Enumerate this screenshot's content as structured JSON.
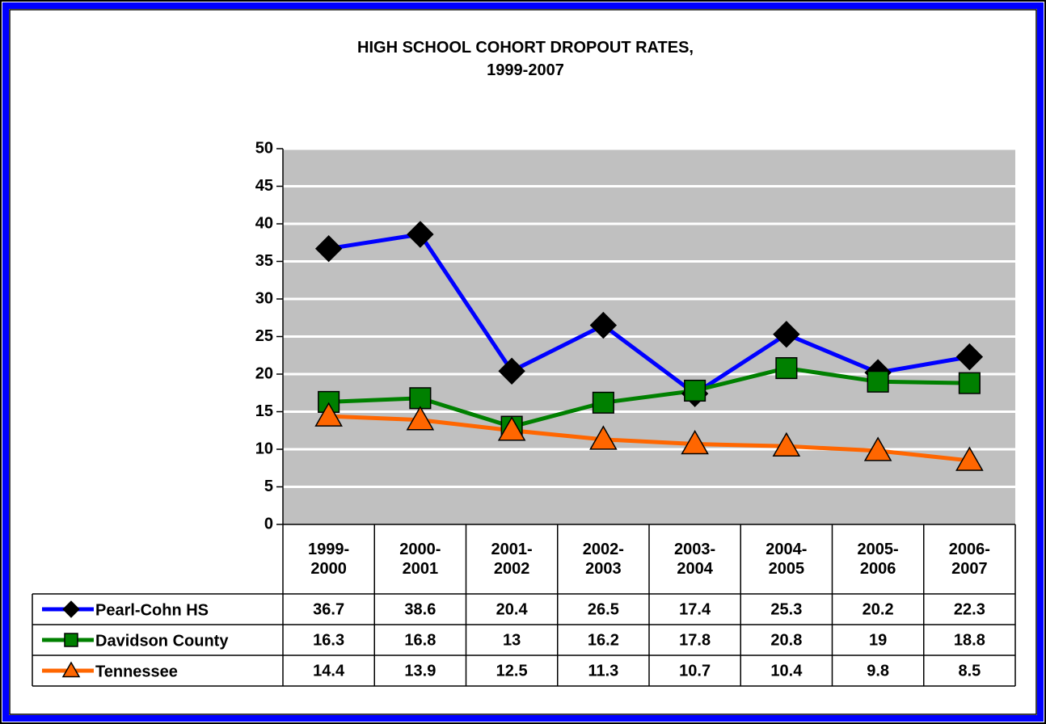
{
  "chart_data": {
    "type": "line",
    "title": "HIGH SCHOOL COHORT DROPOUT RATES,\n1999-2007",
    "categories": [
      "1999-2000",
      "2000-2001",
      "2001-2002",
      "2002-2003",
      "2003-2004",
      "2004-2005",
      "2005-2006",
      "2006-2007"
    ],
    "series": [
      {
        "name": "Pearl-Cohn HS",
        "color": "#0000ff",
        "marker": "diamond",
        "marker_color": "#000000",
        "values": [
          36.7,
          38.6,
          20.4,
          26.5,
          17.4,
          25.3,
          20.2,
          22.3
        ]
      },
      {
        "name": "Davidson County",
        "color": "#008000",
        "marker": "square",
        "marker_color": "#008000",
        "values": [
          16.3,
          16.8,
          13,
          16.2,
          17.8,
          20.8,
          19,
          18.8
        ]
      },
      {
        "name": "Tennessee",
        "color": "#ff6600",
        "marker": "triangle",
        "marker_color": "#ff6600",
        "values": [
          14.4,
          13.9,
          12.5,
          11.3,
          10.7,
          10.4,
          9.8,
          8.5
        ]
      }
    ],
    "ylim": [
      0,
      50
    ],
    "yticks": [
      0,
      5,
      10,
      15,
      20,
      25,
      30,
      35,
      40,
      45,
      50
    ],
    "grid": true,
    "data_table": true
  }
}
